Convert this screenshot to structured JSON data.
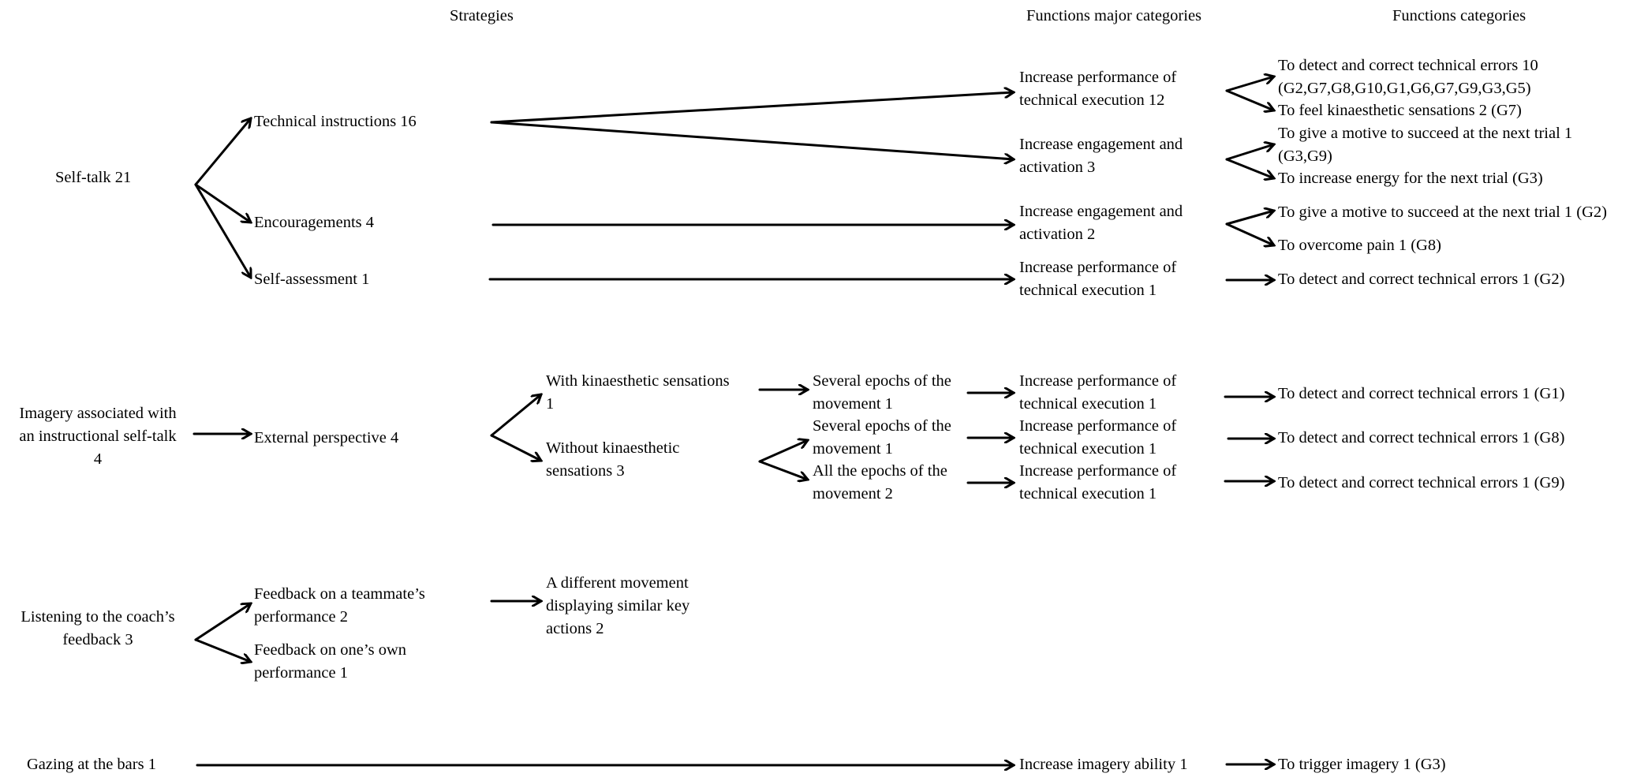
{
  "headers": {
    "strategies": "Strategies",
    "functions_major": "Functions major categories",
    "functions_categories": "Functions categories"
  },
  "self_talk": {
    "root": "Self-talk 21",
    "technical_instructions": "Technical instructions 16",
    "encouragements": "Encouragements 4",
    "self_assessment": "Self-assessment 1",
    "major_1": [
      "Increase performance of",
      "technical execution 12"
    ],
    "major_2": [
      "Increase engagement and",
      "activation 3"
    ],
    "major_3": [
      "Increase engagement and",
      "activation 2"
    ],
    "major_4": [
      "Increase performance of",
      "technical execution 1"
    ],
    "cat_1": [
      "To detect and correct technical errors 10",
      "(G2,G7,G8,G10,G1,G6,G7,G9,G3,G5)"
    ],
    "cat_2": "To feel kinaesthetic sensations 2 (G7)",
    "cat_3": [
      "To give a motive to succeed at the next trial 1",
      "(G3,G9)"
    ],
    "cat_4": "To increase energy for the next trial (G3)",
    "cat_5": "To give a motive to succeed at the next trial 1 (G2)",
    "cat_6": "To overcome pain 1 (G8)",
    "cat_7": "To detect and correct technical errors 1 (G2)"
  },
  "imagery": {
    "root": [
      "Imagery associated with",
      "an instructional self-talk",
      "4"
    ],
    "external": "External perspective 4",
    "with_kin": [
      "With kinaesthetic sensations",
      "1"
    ],
    "without_kin": [
      "Without kinaesthetic",
      "sensations 3"
    ],
    "epochs_1": [
      "Several epochs of the",
      "movement 1"
    ],
    "epochs_2": [
      "Several epochs of the",
      "movement 1"
    ],
    "epochs_3": [
      "All the epochs of the",
      "movement 2"
    ],
    "major_1": [
      "Increase performance of",
      "technical execution 1"
    ],
    "major_2": [
      "Increase performance of",
      "technical execution 1"
    ],
    "major_3": [
      "Increase performance of",
      "technical execution 1"
    ],
    "cat_1": "To detect and correct technical errors 1 (G1)",
    "cat_2": "To detect and correct technical errors 1 (G8)",
    "cat_3": "To detect and correct technical errors 1 (G9)"
  },
  "listening": {
    "root": [
      "Listening to the coach’s",
      "feedback 3"
    ],
    "teammate": [
      "Feedback on a teammate’s",
      "performance 2"
    ],
    "own": [
      "Feedback on one’s own",
      "performance 1"
    ],
    "different": [
      "A different movement",
      "displaying similar key",
      "actions 2"
    ]
  },
  "gazing": {
    "root": "Gazing at the bars 1",
    "major": "Increase imagery ability 1",
    "cat": "To trigger imagery 1 (G3)"
  }
}
